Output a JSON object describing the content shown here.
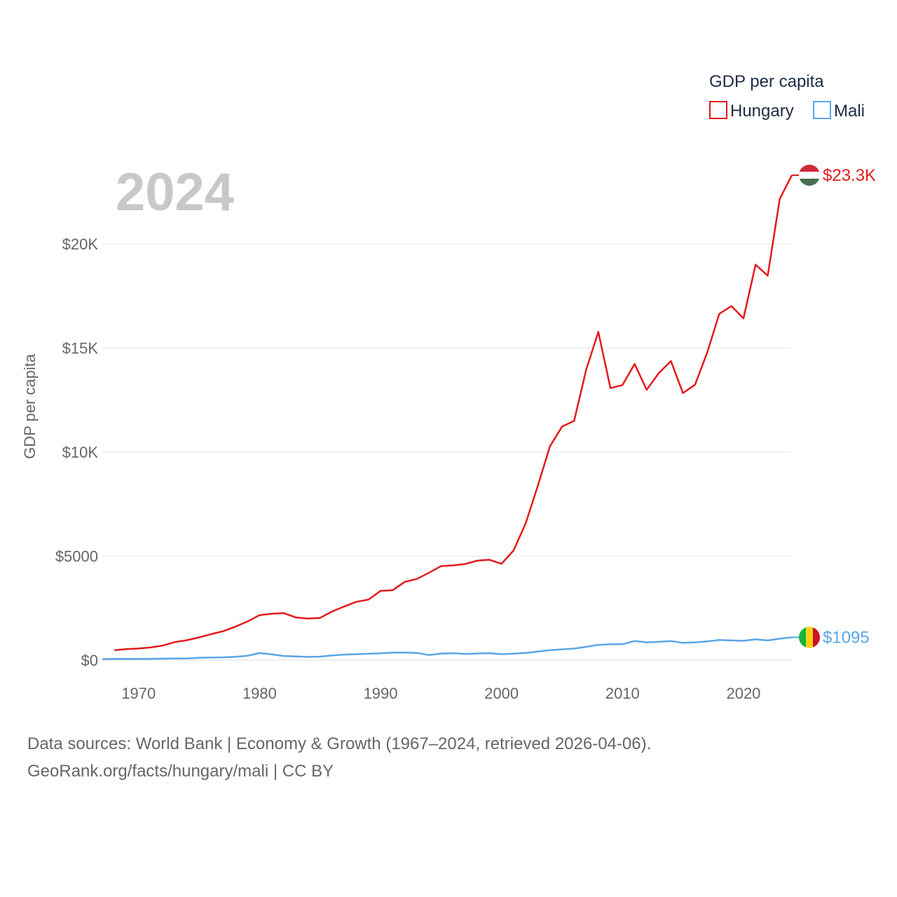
{
  "chart_data": {
    "type": "line",
    "title": "GDP per capita",
    "year_label": "2024",
    "ylabel": "GDP per capita",
    "xlabel": "",
    "xlim": [
      1967,
      2024
    ],
    "ylim": [
      0,
      24000
    ],
    "x_ticks": [
      1970,
      1980,
      1990,
      2000,
      2010,
      2020
    ],
    "y_ticks": [
      {
        "value": 0,
        "label": "$0"
      },
      {
        "value": 5000,
        "label": "$5000"
      },
      {
        "value": 10000,
        "label": "$10K"
      },
      {
        "value": 15000,
        "label": "$15K"
      },
      {
        "value": 20000,
        "label": "$20K"
      }
    ],
    "grid": true,
    "legend_position": "top-right",
    "series": [
      {
        "name": "Hungary",
        "color": "#e31a1c",
        "end_label": "$23.3K",
        "flag_colors": [
          "#ce2939",
          "#ffffff",
          "#477050"
        ],
        "points": [
          [
            1968,
            480
          ],
          [
            1969,
            530
          ],
          [
            1970,
            560
          ],
          [
            1971,
            610
          ],
          [
            1972,
            700
          ],
          [
            1973,
            870
          ],
          [
            1974,
            960
          ],
          [
            1975,
            1090
          ],
          [
            1976,
            1250
          ],
          [
            1977,
            1390
          ],
          [
            1978,
            1610
          ],
          [
            1979,
            1860
          ],
          [
            1980,
            2160
          ],
          [
            1981,
            2230
          ],
          [
            1982,
            2260
          ],
          [
            1983,
            2050
          ],
          [
            1984,
            2000
          ],
          [
            1985,
            2030
          ],
          [
            1986,
            2340
          ],
          [
            1987,
            2580
          ],
          [
            1988,
            2800
          ],
          [
            1989,
            2910
          ],
          [
            1990,
            3330
          ],
          [
            1991,
            3360
          ],
          [
            1992,
            3760
          ],
          [
            1993,
            3900
          ],
          [
            1994,
            4200
          ],
          [
            1995,
            4520
          ],
          [
            1996,
            4550
          ],
          [
            1997,
            4620
          ],
          [
            1998,
            4780
          ],
          [
            1999,
            4820
          ],
          [
            2000,
            4630
          ],
          [
            2001,
            5270
          ],
          [
            2002,
            6580
          ],
          [
            2003,
            8380
          ],
          [
            2004,
            10270
          ],
          [
            2005,
            11220
          ],
          [
            2006,
            11500
          ],
          [
            2007,
            13960
          ],
          [
            2008,
            15770
          ],
          [
            2009,
            13070
          ],
          [
            2010,
            13220
          ],
          [
            2011,
            14230
          ],
          [
            2012,
            12990
          ],
          [
            2013,
            13790
          ],
          [
            2014,
            14370
          ],
          [
            2015,
            12830
          ],
          [
            2016,
            13240
          ],
          [
            2017,
            14780
          ],
          [
            2018,
            16640
          ],
          [
            2019,
            17010
          ],
          [
            2020,
            16420
          ],
          [
            2021,
            19000
          ],
          [
            2022,
            18470
          ],
          [
            2023,
            22160
          ],
          [
            2024,
            23300
          ]
        ]
      },
      {
        "name": "Mali",
        "color": "#5aa6e6",
        "end_label": "$1095",
        "flag_colors": [
          "#14b53a",
          "#fcd116",
          "#ce1126"
        ],
        "points": [
          [
            1967,
            50
          ],
          [
            1968,
            60
          ],
          [
            1969,
            60
          ],
          [
            1970,
            60
          ],
          [
            1971,
            65
          ],
          [
            1972,
            70
          ],
          [
            1973,
            80
          ],
          [
            1974,
            80
          ],
          [
            1975,
            115
          ],
          [
            1976,
            125
          ],
          [
            1977,
            135
          ],
          [
            1978,
            160
          ],
          [
            1979,
            210
          ],
          [
            1980,
            340
          ],
          [
            1981,
            280
          ],
          [
            1982,
            200
          ],
          [
            1983,
            175
          ],
          [
            1984,
            155
          ],
          [
            1985,
            170
          ],
          [
            1986,
            230
          ],
          [
            1987,
            265
          ],
          [
            1988,
            285
          ],
          [
            1989,
            305
          ],
          [
            1990,
            330
          ],
          [
            1991,
            360
          ],
          [
            1992,
            365
          ],
          [
            1993,
            345
          ],
          [
            1994,
            245
          ],
          [
            1995,
            315
          ],
          [
            1996,
            335
          ],
          [
            1997,
            300
          ],
          [
            1998,
            320
          ],
          [
            1999,
            335
          ],
          [
            2000,
            285
          ],
          [
            2001,
            310
          ],
          [
            2002,
            345
          ],
          [
            2003,
            410
          ],
          [
            2004,
            480
          ],
          [
            2005,
            520
          ],
          [
            2006,
            555
          ],
          [
            2007,
            640
          ],
          [
            2008,
            735
          ],
          [
            2009,
            760
          ],
          [
            2010,
            765
          ],
          [
            2011,
            920
          ],
          [
            2012,
            855
          ],
          [
            2013,
            880
          ],
          [
            2014,
            915
          ],
          [
            2015,
            830
          ],
          [
            2016,
            855
          ],
          [
            2017,
            900
          ],
          [
            2018,
            970
          ],
          [
            2019,
            945
          ],
          [
            2020,
            930
          ],
          [
            2021,
            995
          ],
          [
            2022,
            945
          ],
          [
            2023,
            1030
          ],
          [
            2024,
            1095
          ]
        ]
      }
    ]
  },
  "footer": {
    "line1": "Data sources: World Bank | Economy & Growth (1967–2024, retrieved 2026-04-06).",
    "line2": "GeoRank.org/facts/hungary/mali | CC BY"
  }
}
